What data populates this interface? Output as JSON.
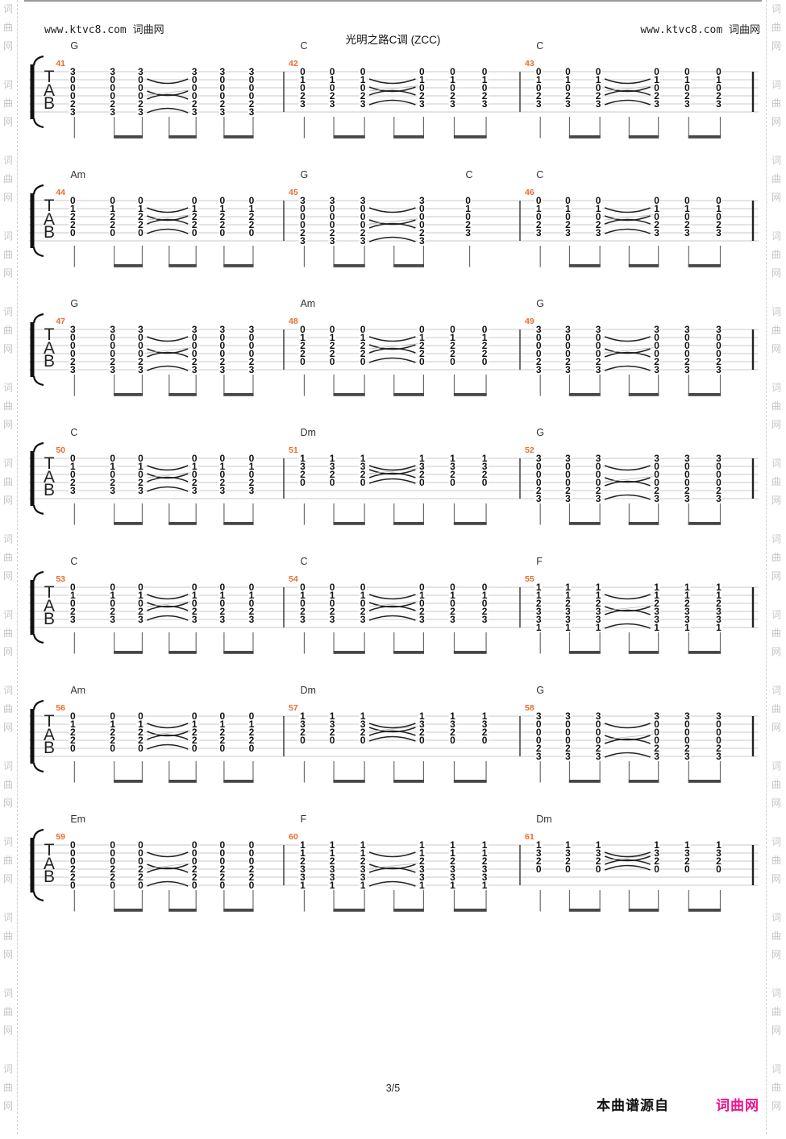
{
  "header": {
    "site_left": "www.ktvc8.com 词曲网",
    "site_right": "www.ktvc8.com 词曲网",
    "title": "光明之路C调 (ZCC)"
  },
  "watermark": {
    "chars": [
      "词",
      "曲",
      "网"
    ],
    "color": "#c6c6c6",
    "repeats": 15
  },
  "clef": {
    "letters": [
      "T",
      "A",
      "B"
    ]
  },
  "colors": {
    "measure_number": "#ec6c2d",
    "brand_pink": "#f0128b",
    "staff_line": "#c9c9c9",
    "beam": "#474747",
    "stem": "#6b6b6b",
    "ink": "#111111"
  },
  "shapes": {
    "G": [
      "3",
      "0",
      "0",
      "0",
      "2",
      "3"
    ],
    "C": [
      "0",
      "1",
      "0",
      "2",
      "3"
    ],
    "Am": [
      "0",
      "1",
      "2",
      "2",
      "0"
    ],
    "Dm": [
      "1",
      "3",
      "2",
      "0"
    ],
    "Em": [
      "0",
      "0",
      "0",
      "2",
      "2",
      "0"
    ],
    "F": [
      "1",
      "1",
      "2",
      "3",
      "3",
      "1"
    ]
  },
  "systems": [
    {
      "measures": [
        {
          "number": "41",
          "chords": [
            {
              "label": "G",
              "col": 0
            }
          ],
          "pattern": [
            "G",
            "G",
            "G",
            "G",
            "G",
            "G"
          ]
        },
        {
          "number": "42",
          "chords": [
            {
              "label": "C",
              "col": 0
            }
          ],
          "pattern": [
            "C",
            "C",
            "C",
            "C",
            "C",
            "C"
          ]
        },
        {
          "number": "43",
          "chords": [
            {
              "label": "C",
              "col": 0
            }
          ],
          "pattern": [
            "C",
            "C",
            "C",
            "C",
            "C",
            "C"
          ]
        }
      ]
    },
    {
      "measures": [
        {
          "number": "44",
          "chords": [
            {
              "label": "Am",
              "col": 0
            }
          ],
          "pattern": [
            "Am",
            "Am",
            "Am",
            "Am",
            "Am",
            "Am"
          ]
        },
        {
          "number": "45",
          "chords": [
            {
              "label": "G",
              "col": 0
            },
            {
              "label": "C",
              "col": 4
            }
          ],
          "pattern": [
            "G",
            "G",
            "G",
            "G",
            "C"
          ]
        },
        {
          "number": "46",
          "chords": [
            {
              "label": "C",
              "col": 0
            }
          ],
          "pattern": [
            "C",
            "C",
            "C",
            "C",
            "C",
            "C"
          ]
        }
      ]
    },
    {
      "measures": [
        {
          "number": "47",
          "chords": [
            {
              "label": "G",
              "col": 0
            }
          ],
          "pattern": [
            "G",
            "G",
            "G",
            "G",
            "G",
            "G"
          ]
        },
        {
          "number": "48",
          "chords": [
            {
              "label": "Am",
              "col": 0
            }
          ],
          "pattern": [
            "Am",
            "Am",
            "Am",
            "Am",
            "Am",
            "Am"
          ]
        },
        {
          "number": "49",
          "chords": [
            {
              "label": "G",
              "col": 0
            }
          ],
          "pattern": [
            "G",
            "G",
            "G",
            "G",
            "G",
            "G"
          ]
        }
      ]
    },
    {
      "measures": [
        {
          "number": "50",
          "chords": [
            {
              "label": "C",
              "col": 0
            }
          ],
          "pattern": [
            "C",
            "C",
            "C",
            "C",
            "C",
            "C"
          ]
        },
        {
          "number": "51",
          "chords": [
            {
              "label": "Dm",
              "col": 0
            }
          ],
          "pattern": [
            "Dm",
            "Dm",
            "Dm",
            "Dm",
            "Dm",
            "Dm"
          ]
        },
        {
          "number": "52",
          "chords": [
            {
              "label": "G",
              "col": 0
            }
          ],
          "pattern": [
            "G",
            "G",
            "G",
            "G",
            "G",
            "G"
          ]
        }
      ]
    },
    {
      "measures": [
        {
          "number": "53",
          "chords": [
            {
              "label": "C",
              "col": 0
            }
          ],
          "pattern": [
            "C",
            "C",
            "C",
            "C",
            "C",
            "C"
          ]
        },
        {
          "number": "54",
          "chords": [
            {
              "label": "C",
              "col": 0
            }
          ],
          "pattern": [
            "C",
            "C",
            "C",
            "C",
            "C",
            "C"
          ]
        },
        {
          "number": "55",
          "chords": [
            {
              "label": "F",
              "col": 0
            }
          ],
          "pattern": [
            "F",
            "F",
            "F",
            "F",
            "F",
            "F"
          ]
        }
      ]
    },
    {
      "measures": [
        {
          "number": "56",
          "chords": [
            {
              "label": "Am",
              "col": 0
            }
          ],
          "pattern": [
            "Am",
            "Am",
            "Am",
            "Am",
            "Am",
            "Am"
          ]
        },
        {
          "number": "57",
          "chords": [
            {
              "label": "Dm",
              "col": 0
            }
          ],
          "pattern": [
            "Dm",
            "Dm",
            "Dm",
            "Dm",
            "Dm",
            "Dm"
          ]
        },
        {
          "number": "58",
          "chords": [
            {
              "label": "G",
              "col": 0
            }
          ],
          "pattern": [
            "G",
            "G",
            "G",
            "G",
            "G",
            "G"
          ]
        }
      ]
    },
    {
      "measures": [
        {
          "number": "59",
          "chords": [
            {
              "label": "Em",
              "col": 0
            }
          ],
          "pattern": [
            "Em",
            "Em",
            "Em",
            "Em",
            "Em",
            "Em"
          ]
        },
        {
          "number": "60",
          "chords": [
            {
              "label": "F",
              "col": 0
            }
          ],
          "pattern": [
            "F",
            "F",
            "F",
            "F",
            "F",
            "F"
          ]
        },
        {
          "number": "61",
          "chords": [
            {
              "label": "Dm",
              "col": 0
            }
          ],
          "pattern": [
            "Dm",
            "Dm",
            "Dm",
            "Dm",
            "Dm",
            "Dm"
          ]
        }
      ]
    }
  ],
  "footer": {
    "page": "3/5",
    "source_prefix": "本曲谱源自",
    "source_brand": "词曲网"
  }
}
